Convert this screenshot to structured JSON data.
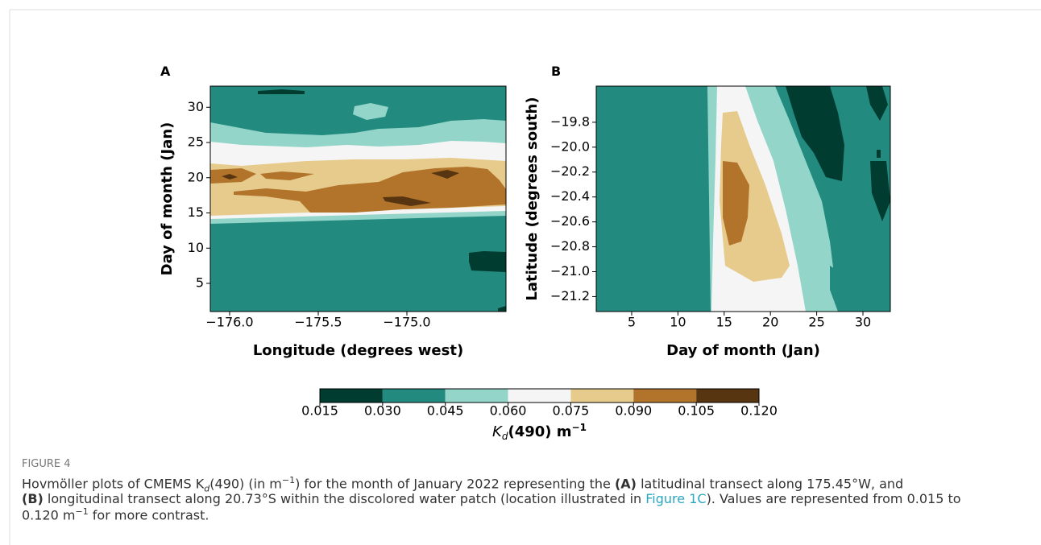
{
  "figure": {
    "label": "FIGURE 4",
    "panels": [
      {
        "label": "A",
        "xlabel": "Longitude (degrees west)",
        "ylabel": "Day of month (Jan)",
        "xlim": [
          -176.109,
          -174.441
        ],
        "ylim": [
          1,
          33
        ],
        "xticks": [
          {
            "value": -176.0,
            "label": "−176.0"
          },
          {
            "value": -175.5,
            "label": "−175.5"
          },
          {
            "value": -175.0,
            "label": "−175.0"
          }
        ],
        "yticks": [
          5,
          10,
          15,
          20,
          25,
          30
        ]
      },
      {
        "label": "B",
        "xlabel": "Day of month (Jan)",
        "ylabel": "Latitude (degrees south)",
        "xlim": [
          1.17,
          32.96
        ],
        "ylim": [
          -21.32,
          -19.51
        ],
        "xticks": [
          5,
          10,
          15,
          20,
          25,
          30
        ],
        "yticks": [
          {
            "value": -19.8,
            "label": "−19.8"
          },
          {
            "value": -20.0,
            "label": "−20.0"
          },
          {
            "value": -20.2,
            "label": "−20.2"
          },
          {
            "value": -20.4,
            "label": "−20.4"
          },
          {
            "value": -20.6,
            "label": "−20.6"
          },
          {
            "value": -20.8,
            "label": "−20.8"
          },
          {
            "value": -21.0,
            "label": "−21.0"
          },
          {
            "value": -21.2,
            "label": "−21.2"
          }
        ]
      }
    ],
    "colorbar": {
      "ticks": [
        0.015,
        {
          "value": 0.03,
          "label": "0.030"
        },
        0.045,
        {
          "value": 0.06,
          "label": "0.060"
        },
        0.075,
        {
          "value": 0.09,
          "label": "0.090"
        },
        0.105,
        {
          "value": 0.12,
          "label": "0.120"
        }
      ],
      "colors": [
        "#003c30",
        "#238a80",
        "#94d5ca",
        "#f5f5f5",
        "#e6cb8d",
        "#b2742a",
        "#583511"
      ],
      "label": {
        "symbol": "K",
        "subscript": "d",
        "text": "(490) m",
        "superscript": "−1"
      }
    },
    "caption": [
      [
        {
          "text": "Hovmöller plots of CMEMS K",
          "style": "plain"
        },
        {
          "text": "d",
          "style": "sub"
        },
        {
          "text": "(490) (in m",
          "style": "plain"
        },
        {
          "text": "−1",
          "style": "sup"
        },
        {
          "text": ") for the month of January 2022 representing the ",
          "style": "plain"
        },
        {
          "text": "(A)",
          "style": "bold"
        },
        {
          "text": " latitudinal transect along 175.45°W, and",
          "style": "plain"
        }
      ],
      [
        {
          "text": "(B)",
          "style": "bold"
        },
        {
          "text": " longitudinal transect along 20.73°S within the discolored water patch (location illustrated in ",
          "style": "plain"
        },
        {
          "text": "Figure 1C",
          "style": "link"
        },
        {
          "text": "). Values are represented from 0.015 to",
          "style": "plain"
        }
      ],
      [
        {
          "text": "0.120 m",
          "style": "plain"
        },
        {
          "text": "−1",
          "style": "sup"
        },
        {
          "text": " for more contrast.",
          "style": "plain"
        }
      ]
    ]
  }
}
